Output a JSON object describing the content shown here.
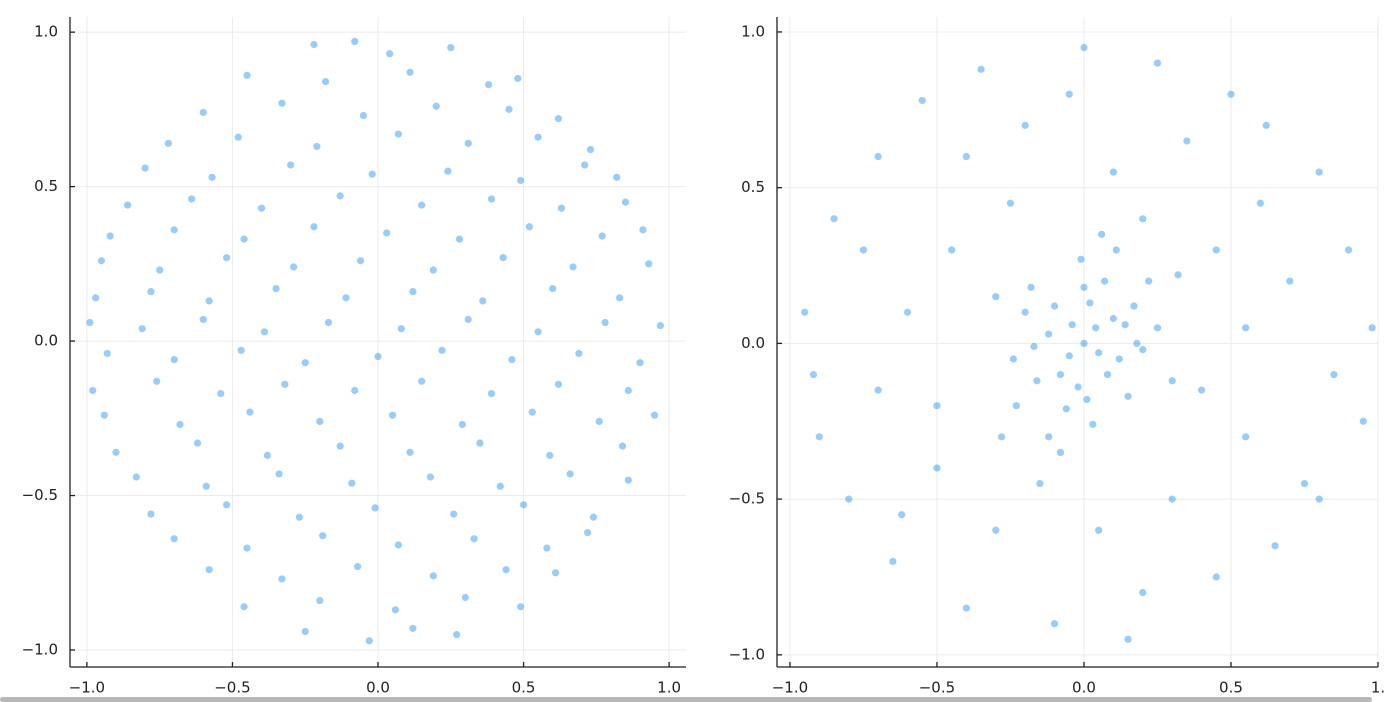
{
  "chart_data": [
    {
      "type": "scatter",
      "color": "#1e8ff0",
      "grid": true,
      "xlim": [
        -1.058,
        1.058
      ],
      "ylim": [
        -1.055,
        1.049
      ],
      "xticks": [
        {
          "value": -1,
          "label": "−1.0"
        },
        {
          "value": -0.5,
          "label": "−0.5"
        },
        {
          "value": 0,
          "label": "0.0"
        },
        {
          "value": 0.5,
          "label": "0.5"
        },
        {
          "value": 1,
          "label": "1.0"
        }
      ],
      "yticks": [
        {
          "value": -1,
          "label": "−1.0"
        },
        {
          "value": -0.5,
          "label": "−0.5"
        },
        {
          "value": 0,
          "label": "0.0"
        },
        {
          "value": 0.5,
          "label": "0.5"
        },
        {
          "value": 1,
          "label": "1.0"
        }
      ],
      "x": [
        -0.22,
        0.04,
        0.25,
        -0.08,
        -0.45,
        -0.18,
        0.11,
        0.38,
        0.48,
        -0.6,
        -0.33,
        -0.05,
        0.2,
        0.45,
        0.62,
        -0.72,
        -0.48,
        -0.21,
        0.07,
        0.31,
        0.55,
        0.73,
        -0.8,
        -0.57,
        -0.3,
        -0.02,
        0.24,
        0.49,
        0.71,
        0.82,
        -0.86,
        -0.64,
        -0.4,
        -0.13,
        0.15,
        0.39,
        0.63,
        0.85,
        -0.92,
        -0.7,
        -0.46,
        -0.22,
        0.03,
        0.28,
        0.52,
        0.77,
        0.91,
        -0.95,
        -0.75,
        -0.52,
        -0.29,
        -0.06,
        0.19,
        0.43,
        0.67,
        0.93,
        -0.97,
        -0.78,
        -0.58,
        -0.35,
        -0.11,
        0.12,
        0.36,
        0.6,
        0.83,
        -0.99,
        -0.81,
        -0.6,
        -0.39,
        -0.17,
        0.08,
        0.31,
        0.55,
        0.78,
        0.97,
        -0.93,
        -0.7,
        -0.47,
        -0.25,
        0.0,
        0.22,
        0.46,
        0.69,
        0.9,
        -0.98,
        -0.76,
        -0.54,
        -0.32,
        -0.08,
        0.15,
        0.39,
        0.62,
        0.86,
        -0.94,
        -0.68,
        -0.44,
        -0.2,
        0.05,
        0.29,
        0.53,
        0.76,
        0.95,
        -0.9,
        -0.62,
        -0.38,
        -0.13,
        0.11,
        0.35,
        0.59,
        0.84,
        -0.83,
        -0.59,
        -0.34,
        -0.09,
        0.18,
        0.42,
        0.66,
        0.86,
        -0.78,
        -0.52,
        -0.27,
        -0.01,
        0.26,
        0.5,
        0.74,
        -0.7,
        -0.45,
        -0.19,
        0.07,
        0.33,
        0.58,
        0.72,
        -0.58,
        -0.33,
        -0.07,
        0.19,
        0.44,
        0.61,
        -0.46,
        -0.2,
        0.06,
        0.3,
        0.49,
        -0.25,
        -0.03,
        0.12,
        0.27
      ],
      "y": [
        0.96,
        0.93,
        0.95,
        0.97,
        0.86,
        0.84,
        0.87,
        0.83,
        0.85,
        0.74,
        0.77,
        0.73,
        0.76,
        0.75,
        0.72,
        0.64,
        0.66,
        0.63,
        0.67,
        0.64,
        0.66,
        0.62,
        0.56,
        0.53,
        0.57,
        0.54,
        0.55,
        0.52,
        0.57,
        0.53,
        0.44,
        0.46,
        0.43,
        0.47,
        0.44,
        0.46,
        0.43,
        0.45,
        0.34,
        0.36,
        0.33,
        0.37,
        0.35,
        0.33,
        0.37,
        0.34,
        0.36,
        0.26,
        0.23,
        0.27,
        0.24,
        0.26,
        0.23,
        0.27,
        0.24,
        0.25,
        0.14,
        0.16,
        0.13,
        0.17,
        0.14,
        0.16,
        0.13,
        0.17,
        0.14,
        0.06,
        0.04,
        0.07,
        0.03,
        0.06,
        0.04,
        0.07,
        0.03,
        0.06,
        0.05,
        -0.04,
        -0.06,
        -0.03,
        -0.07,
        -0.05,
        -0.03,
        -0.06,
        -0.04,
        -0.07,
        -0.16,
        -0.13,
        -0.17,
        -0.14,
        -0.16,
        -0.13,
        -0.17,
        -0.14,
        -0.16,
        -0.24,
        -0.27,
        -0.23,
        -0.26,
        -0.24,
        -0.27,
        -0.23,
        -0.26,
        -0.24,
        -0.36,
        -0.33,
        -0.37,
        -0.34,
        -0.36,
        -0.33,
        -0.37,
        -0.34,
        -0.44,
        -0.47,
        -0.43,
        -0.46,
        -0.44,
        -0.47,
        -0.43,
        -0.45,
        -0.56,
        -0.53,
        -0.57,
        -0.54,
        -0.56,
        -0.53,
        -0.57,
        -0.64,
        -0.67,
        -0.63,
        -0.66,
        -0.64,
        -0.67,
        -0.62,
        -0.74,
        -0.77,
        -0.73,
        -0.76,
        -0.74,
        -0.75,
        -0.86,
        -0.84,
        -0.87,
        -0.83,
        -0.86,
        -0.94,
        -0.97,
        -0.93,
        -0.95
      ]
    },
    {
      "type": "scatter",
      "color": "#1e8ff0",
      "grid": true,
      "xlim": [
        -1.044,
        1.0
      ],
      "ylim": [
        -1.039,
        1.048
      ],
      "xticks": [
        {
          "value": -1,
          "label": "−1.0"
        },
        {
          "value": -0.5,
          "label": "−0.5"
        },
        {
          "value": 0,
          "label": "0.0"
        },
        {
          "value": 0.5,
          "label": "0.5"
        },
        {
          "value": 1,
          "label": "1."
        }
      ],
      "yticks": [
        {
          "value": -1,
          "label": "−1.0"
        },
        {
          "value": -0.5,
          "label": "−0.5"
        },
        {
          "value": 0,
          "label": "0.0"
        },
        {
          "value": 0.5,
          "label": "0.5"
        },
        {
          "value": 1,
          "label": "1.0"
        }
      ],
      "x": [
        -0.95,
        -0.9,
        -0.85,
        -0.8,
        -0.7,
        -0.65,
        -0.55,
        -0.5,
        -0.45,
        -0.4,
        -0.35,
        -0.6,
        -0.7,
        -0.3,
        -0.2,
        -0.1,
        0.0,
        0.05,
        0.1,
        0.2,
        0.25,
        0.3,
        0.35,
        0.45,
        0.5,
        0.55,
        0.6,
        0.65,
        0.7,
        0.75,
        0.8,
        0.85,
        0.9,
        0.95,
        0.98,
        0.8,
        -0.92,
        -0.25,
        0.45,
        -0.5,
        0.55,
        -0.15,
        0.2,
        -0.4,
        0.4,
        -0.75,
        0.15,
        -0.05,
        0.62,
        -0.62,
        0.0,
        0.05,
        -0.04,
        0.1,
        -0.08,
        0.12,
        -0.12,
        0.02,
        -0.02,
        0.17,
        -0.16,
        0.2,
        -0.2,
        0.07,
        -0.06,
        0.15,
        -0.18,
        0.25,
        -0.24,
        0.03,
        -0.01,
        0.22,
        -0.23,
        0.08,
        -0.1,
        0.3,
        -0.3,
        0.11,
        -0.12,
        0.04,
        -0.05,
        0.18,
        -0.17,
        0.0,
        0.01,
        0.32,
        -0.28,
        0.06,
        -0.08,
        0.14
      ],
      "y": [
        0.1,
        -0.3,
        0.4,
        -0.5,
        0.6,
        -0.7,
        0.78,
        -0.4,
        0.3,
        -0.85,
        0.88,
        0.1,
        -0.15,
        -0.6,
        0.7,
        -0.9,
        0.95,
        -0.6,
        0.55,
        -0.8,
        0.9,
        -0.5,
        0.65,
        -0.75,
        0.8,
        -0.3,
        0.45,
        -0.65,
        0.2,
        -0.45,
        0.55,
        -0.1,
        0.3,
        -0.25,
        0.05,
        -0.5,
        -0.1,
        0.45,
        0.3,
        -0.2,
        0.05,
        -0.45,
        0.4,
        0.6,
        -0.15,
        0.3,
        -0.95,
        0.8,
        0.7,
        -0.55,
        0.0,
        -0.03,
        0.06,
        0.08,
        -0.1,
        -0.05,
        0.03,
        0.13,
        -0.14,
        0.12,
        -0.12,
        -0.02,
        0.1,
        0.2,
        -0.21,
        -0.17,
        0.18,
        0.05,
        -0.05,
        -0.26,
        0.27,
        0.2,
        -0.2,
        -0.1,
        0.12,
        -0.12,
        0.15,
        0.3,
        -0.3,
        0.05,
        -0.04,
        0.0,
        -0.01,
        0.18,
        -0.18,
        0.22,
        -0.3,
        0.35,
        -0.35,
        0.06
      ]
    }
  ]
}
